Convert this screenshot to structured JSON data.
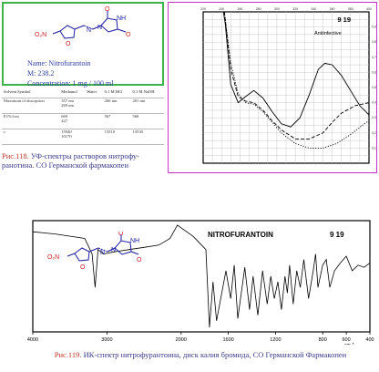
{
  "uv_info": {
    "name": "Name: Nitrofurantoin",
    "mass": "M: 238.2",
    "concentration": "Concentration: 1 mg / 100 ml"
  },
  "uv_table": {
    "headers": [
      "Solvent Symbol",
      "Methanol",
      "Water",
      "0.1 M HCl",
      "0.1 M NaOH"
    ],
    "rows": [
      [
        "Maximum of absorption",
        "357 nm\n269 nm",
        "",
        "266 nm",
        "281 nm"
      ],
      [
        "E1%1cm",
        "669\n427",
        "",
        "567",
        "568"
      ],
      [
        "ε",
        "15940\n10170",
        "",
        "13510",
        "13530"
      ]
    ]
  },
  "uv_caption": {
    "number": "Рис.118.",
    "text": " УФ-спектры растворов нитрофу-ранотина. СО Германской фармакопеи"
  },
  "ir_caption": {
    "number": "Рис.119.",
    "text": " ИК-спектр нитрофурантоина, диск калия бромида, СО Германской Фармакопеи"
  },
  "chart_data": [
    {
      "type": "line",
      "title": "Antiinfective",
      "badge": "9  19",
      "x_tick_labels": [
        "220",
        "240",
        "260",
        "280",
        "300",
        "320",
        "340",
        "360",
        "380",
        "400"
      ],
      "y_tick_labels": [
        "0,9",
        "0,8",
        "0,7",
        "0,6",
        "0,5",
        "0,4",
        "0,3",
        "0,2",
        "0,1"
      ],
      "xlim": [
        220,
        400
      ],
      "ylim": [
        0,
        1.0
      ],
      "grid": true,
      "series": [
        {
          "style": "solid",
          "x": [
            242,
            244,
            250,
            258,
            266,
            275,
            285,
            295,
            305,
            315,
            325,
            335,
            345,
            352,
            360,
            370,
            380,
            390,
            400
          ],
          "y": [
            1.0,
            0.92,
            0.52,
            0.4,
            0.44,
            0.48,
            0.43,
            0.34,
            0.26,
            0.24,
            0.3,
            0.45,
            0.62,
            0.66,
            0.65,
            0.58,
            0.48,
            0.38,
            0.32
          ]
        },
        {
          "style": "dashed",
          "x": [
            243,
            250,
            258,
            266,
            275,
            285,
            295,
            305,
            320,
            335,
            350,
            360,
            370,
            385,
            400
          ],
          "y": [
            1.0,
            0.62,
            0.44,
            0.41,
            0.4,
            0.35,
            0.28,
            0.22,
            0.16,
            0.16,
            0.2,
            0.27,
            0.33,
            0.38,
            0.4
          ]
        },
        {
          "style": "dotted",
          "x": [
            243,
            250,
            258,
            266,
            275,
            285,
            295,
            305,
            320,
            335,
            350,
            365,
            380,
            395,
            400
          ],
          "y": [
            1.0,
            0.66,
            0.46,
            0.4,
            0.39,
            0.34,
            0.27,
            0.2,
            0.13,
            0.1,
            0.1,
            0.13,
            0.19,
            0.26,
            0.28
          ]
        }
      ]
    },
    {
      "type": "line",
      "title": "NITROFURANTOIN",
      "badge": "9  19",
      "x_tick_labels": [
        "4000",
        "3000",
        "2000",
        "1600",
        "1200",
        "800",
        "600",
        "400"
      ],
      "x_unit": "cm-1",
      "xlim": [
        4000,
        400
      ],
      "series": [
        {
          "name": "",
          "x": [
            4000,
            3700,
            3300,
            3200,
            3160,
            3120,
            3050,
            2900,
            2700,
            2500,
            2300,
            2150,
            2050,
            1900,
            1790,
            1760,
            1730,
            1700,
            1620,
            1580,
            1550,
            1520,
            1460,
            1420,
            1390,
            1350,
            1310,
            1270,
            1240,
            1210,
            1180,
            1150,
            1120,
            1100,
            1080,
            1050,
            1020,
            990,
            960,
            920,
            880,
            860,
            840,
            800,
            770,
            740,
            700,
            650,
            600,
            550,
            500,
            450,
            400
          ],
          "y": [
            90,
            88,
            84,
            70,
            40,
            74,
            70,
            72,
            74,
            76,
            78,
            84,
            96,
            86,
            74,
            4,
            45,
            10,
            55,
            30,
            60,
            12,
            58,
            20,
            50,
            15,
            55,
            25,
            50,
            30,
            45,
            20,
            50,
            35,
            60,
            25,
            55,
            40,
            65,
            30,
            55,
            70,
            40,
            60,
            65,
            40,
            55,
            62,
            68,
            55,
            60,
            58,
            62
          ]
        }
      ]
    }
  ]
}
